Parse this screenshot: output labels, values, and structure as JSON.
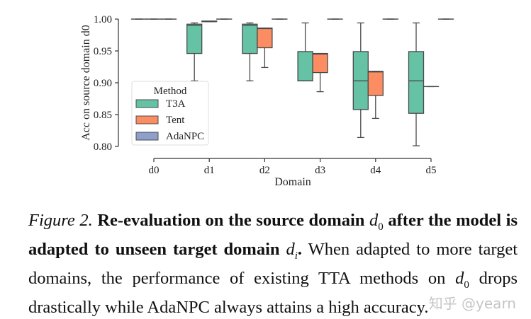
{
  "chart_data": {
    "type": "box",
    "title": "",
    "xlabel": "Domain",
    "ylabel": "Acc on source domain d0",
    "ylim": [
      0.8,
      1.0
    ],
    "yticks": [
      "0.80",
      "0.85",
      "0.90",
      "0.95",
      "1.00"
    ],
    "categories": [
      "d0",
      "d1",
      "d2",
      "d3",
      "d4",
      "d5"
    ],
    "legend": {
      "title": "Method",
      "position": "lower left",
      "entries": [
        "T3A",
        "Tent",
        "AdaNPC"
      ]
    },
    "colors": {
      "T3A": "#66c2a5",
      "Tent": "#fc8d62",
      "AdaNPC": "#8da0cb",
      "edge": "#4a4a4a"
    },
    "series": [
      {
        "name": "T3A",
        "boxes": [
          {
            "cat": "d0",
            "min": 1.0,
            "q1": 1.0,
            "median": 1.0,
            "q3": 1.0,
            "max": 1.0
          },
          {
            "cat": "d1",
            "min": 0.903,
            "q1": 0.946,
            "median": 0.99,
            "q3": 0.992,
            "max": 0.994
          },
          {
            "cat": "d2",
            "min": 0.903,
            "q1": 0.946,
            "median": 0.99,
            "q3": 0.992,
            "max": 0.994
          },
          {
            "cat": "d3",
            "min": 0.903,
            "q1": 0.903,
            "median": 0.903,
            "q3": 0.949,
            "max": 0.994
          },
          {
            "cat": "d4",
            "min": 0.814,
            "q1": 0.858,
            "median": 0.903,
            "q3": 0.949,
            "max": 0.994
          },
          {
            "cat": "d5",
            "min": 0.801,
            "q1": 0.852,
            "median": 0.903,
            "q3": 0.949,
            "max": 0.994
          }
        ]
      },
      {
        "name": "Tent",
        "boxes": [
          {
            "cat": "d0",
            "min": 1.0,
            "q1": 1.0,
            "median": 1.0,
            "q3": 1.0,
            "max": 1.0
          },
          {
            "cat": "d1",
            "min": 0.996,
            "q1": 0.996,
            "median": 0.996,
            "q3": 0.997,
            "max": 0.997
          },
          {
            "cat": "d2",
            "min": 0.924,
            "q1": 0.955,
            "median": 0.985,
            "q3": 0.986,
            "max": 0.986
          },
          {
            "cat": "d3",
            "min": 0.886,
            "q1": 0.916,
            "median": 0.945,
            "q3": 0.946,
            "max": 0.946
          },
          {
            "cat": "d4",
            "min": 0.844,
            "q1": 0.88,
            "median": 0.917,
            "q3": 0.918,
            "max": 0.918
          },
          {
            "cat": "d5",
            "min": 0.894,
            "q1": 0.894,
            "median": 0.894,
            "q3": 0.894,
            "max": 0.894
          }
        ]
      },
      {
        "name": "AdaNPC",
        "boxes": [
          {
            "cat": "d0",
            "min": 1.0,
            "q1": 1.0,
            "median": 1.0,
            "q3": 1.0,
            "max": 1.0
          },
          {
            "cat": "d1",
            "min": 1.0,
            "q1": 1.0,
            "median": 1.0,
            "q3": 1.0,
            "max": 1.0
          },
          {
            "cat": "d2",
            "min": 1.0,
            "q1": 1.0,
            "median": 1.0,
            "q3": 1.0,
            "max": 1.0
          },
          {
            "cat": "d3",
            "min": 1.0,
            "q1": 1.0,
            "median": 1.0,
            "q3": 1.0,
            "max": 1.0
          },
          {
            "cat": "d4",
            "min": 1.0,
            "q1": 1.0,
            "median": 1.0,
            "q3": 1.0,
            "max": 1.0
          },
          {
            "cat": "d5",
            "min": 1.0,
            "q1": 1.0,
            "median": 1.0,
            "q3": 1.0,
            "max": 1.0
          }
        ]
      }
    ]
  },
  "caption": {
    "figure_label": "Figure 2.",
    "bold_1": "Re-evaluation on the source domain",
    "math_d0": "d",
    "math_d0_sub": "0",
    "bold_2": "after the model is adapted to unseen target domain",
    "math_di": "d",
    "math_di_sub": "i",
    "bold_period": ".",
    "text_1": "When adapted to more target domains, the performance of existing TTA methods on",
    "text_2": "drops drastically while AdaNPC always attains a high accuracy."
  },
  "watermark": "知乎 @yearn"
}
